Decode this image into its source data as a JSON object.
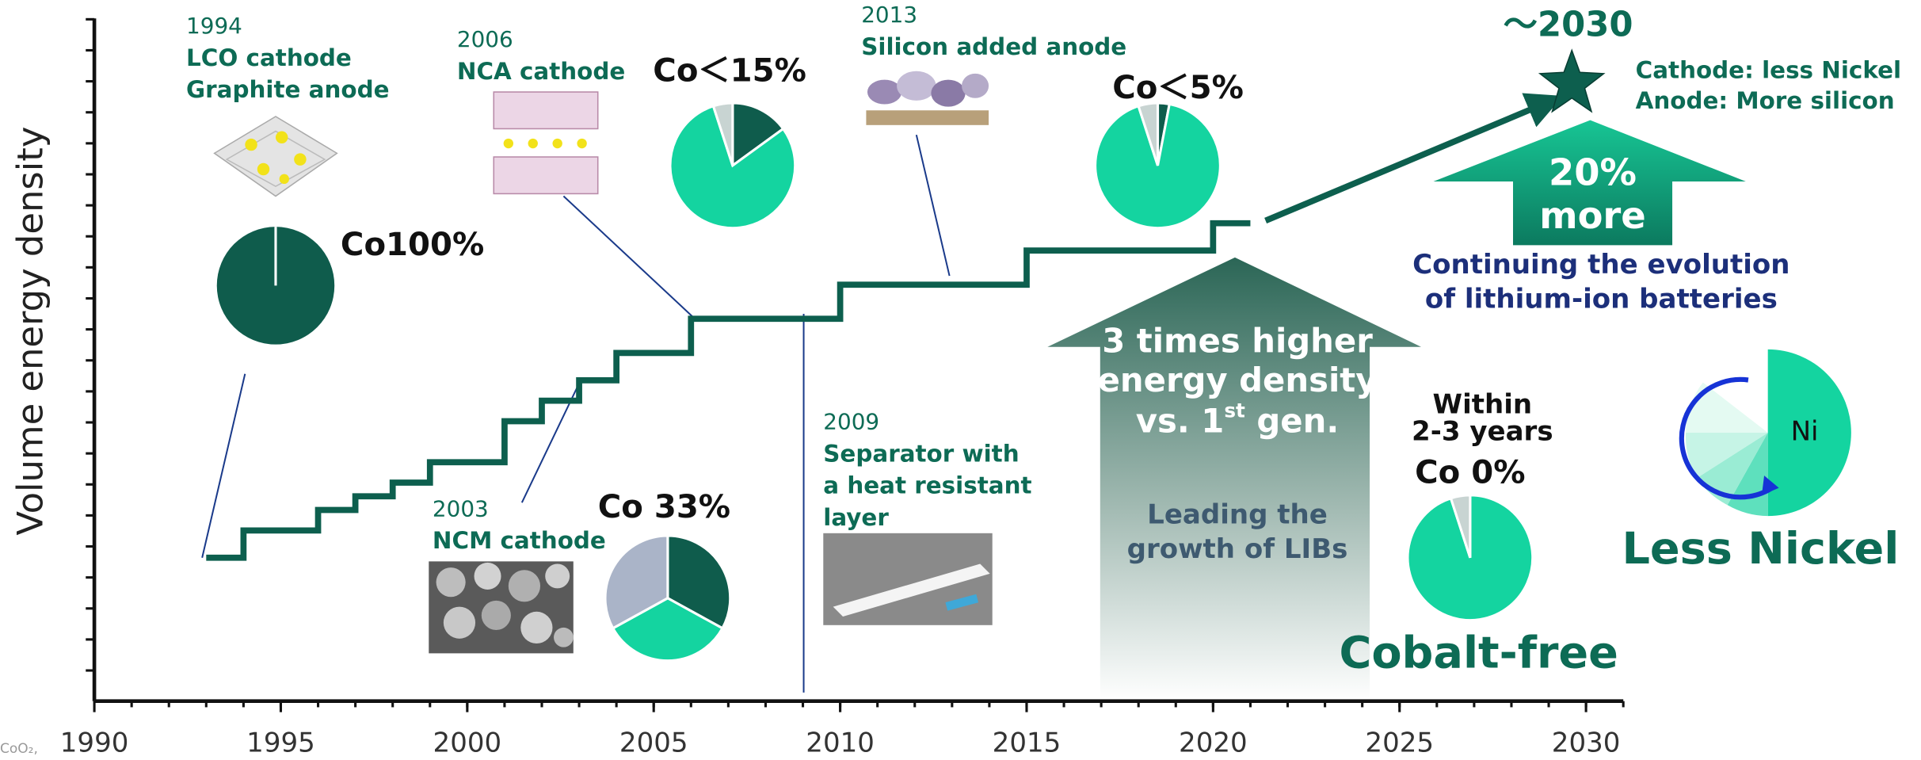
{
  "chart_data": {
    "type": "step",
    "y_label": "Volume energy density",
    "x": [
      1993,
      1994,
      1996,
      1997,
      1998,
      1999,
      2001,
      2002,
      2003,
      2004,
      2006,
      2010,
      2015,
      2020,
      2021
    ],
    "values": [
      21,
      25,
      28,
      30,
      32,
      35,
      41,
      44,
      47,
      51,
      56,
      61,
      66,
      70,
      70
    ],
    "color": "#0d5f4e",
    "xlim": [
      1990,
      2031
    ],
    "xticks": [
      1990,
      1995,
      2000,
      2005,
      2010,
      2015,
      2020,
      2025,
      2030
    ],
    "ylim": [
      0,
      100
    ],
    "footnote": "CoO₂,",
    "milestones": [
      {
        "year": "1994",
        "lines": [
          "LCO cathode",
          "Graphite anode"
        ]
      },
      {
        "year": "2003",
        "lines": [
          "NCM cathode"
        ]
      },
      {
        "year": "2006",
        "lines": [
          "NCA cathode"
        ]
      },
      {
        "year": "2009",
        "lines": [
          "Separator with",
          "a heat resistant",
          "layer"
        ]
      },
      {
        "year": "2013",
        "lines": [
          "Silicon added anode"
        ]
      }
    ],
    "pies": [
      {
        "label": "Co100%",
        "values": [
          100,
          0,
          0
        ],
        "colors": [
          "#0f5c4c",
          "#14d4a0",
          "#c8d4d2"
        ]
      },
      {
        "label": "Co＜15%",
        "values": [
          15,
          80,
          5
        ],
        "colors": [
          "#0f5c4c",
          "#14d4a0",
          "#c8d4d2"
        ]
      },
      {
        "label": "Co 33%",
        "values": [
          33,
          34,
          33
        ],
        "colors": [
          "#0f5c4c",
          "#14d4a0",
          "#aab4c8"
        ]
      },
      {
        "label": "Co＜5%",
        "values": [
          3,
          92,
          5
        ],
        "colors": [
          "#0f5c4c",
          "#14d4a0",
          "#c8d4d2"
        ]
      },
      {
        "label": "Co 0%",
        "values": [
          0,
          95,
          5
        ],
        "colors": [
          "#0f5c4c",
          "#14d4a0",
          "#c8d4d2"
        ],
        "note": [
          "Within",
          "2-3 years"
        ],
        "caption": "Cobalt-free"
      }
    ],
    "callouts": {
      "higher": {
        "lines": [
          "3 times higher",
          "energy density"
        ],
        "gen": [
          "vs. 1",
          "st",
          " gen."
        ],
        "sub": [
          "Leading the",
          "growth of LIBs"
        ]
      },
      "more": {
        "lines": [
          "20%",
          "more"
        ],
        "sub": [
          "Continuing the evolution",
          "of lithium-ion batteries"
        ]
      },
      "target": {
        "year": "～2030",
        "lines": [
          "Cathode: less Nickel",
          "Anode: More silicon"
        ]
      },
      "nickel": {
        "label": "Ni",
        "caption": "Less Nickel"
      }
    }
  }
}
